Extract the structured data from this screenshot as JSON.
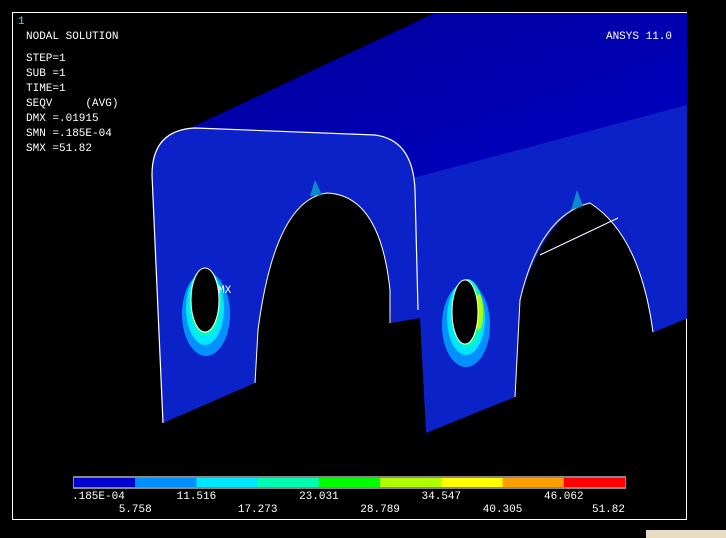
{
  "header": {
    "window_number": "1",
    "title": "NODAL SOLUTION",
    "product": "ANSYS 11.0"
  },
  "info": [
    "STEP=1",
    "SUB =1",
    "TIME=1",
    "SEQV     (AVG)",
    "DMX =.01915",
    "SMN =.185E-04",
    "SMX =51.82"
  ],
  "marker": "MX",
  "legend": {
    "labels": [
      ".185E-04",
      "5.758",
      "11.516",
      "17.273",
      "23.031",
      "28.789",
      "34.547",
      "40.305",
      "46.062",
      "51.82"
    ],
    "colors": [
      "#0000d0",
      "#0090ff",
      "#00e8ff",
      "#00ffb0",
      "#00ff00",
      "#b0ff00",
      "#ffff00",
      "#ffa000",
      "#ff0000"
    ]
  }
}
